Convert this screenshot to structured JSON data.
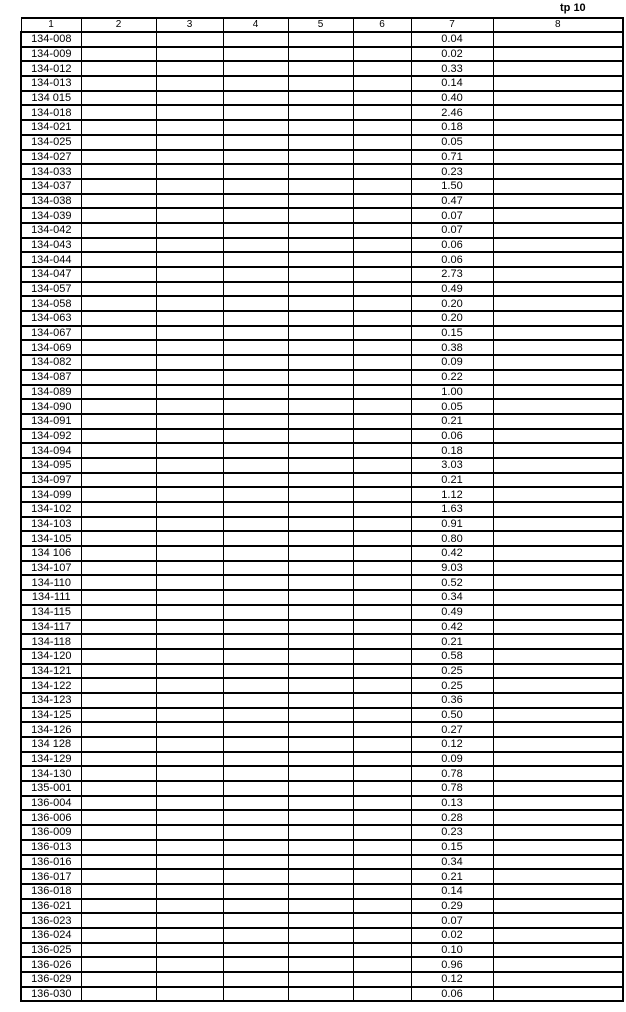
{
  "page_label": "tр 10",
  "columns": [
    "1",
    "2",
    "3",
    "4",
    "5",
    "6",
    "7",
    "8"
  ],
  "rows": [
    [
      "134-008",
      "0.04"
    ],
    [
      "134-009",
      "0.02"
    ],
    [
      "134-012",
      "0.33"
    ],
    [
      "134-013",
      "0.14"
    ],
    [
      "134 015",
      "0.40"
    ],
    [
      "134-018",
      "2.46"
    ],
    [
      "134-021",
      "0.18"
    ],
    [
      "134-025",
      "0.05"
    ],
    [
      "134-027",
      "0.71"
    ],
    [
      "134-033",
      "0.23"
    ],
    [
      "134-037",
      "1.50"
    ],
    [
      "134-038",
      "0.47"
    ],
    [
      "134-039",
      "0.07"
    ],
    [
      "134-042",
      "0.07"
    ],
    [
      "134-043",
      "0.06"
    ],
    [
      "134-044",
      "0.06"
    ],
    [
      "134-047",
      "2.73"
    ],
    [
      "134-057",
      "0.49"
    ],
    [
      "134-058",
      "0.20"
    ],
    [
      "134-063",
      "0.20"
    ],
    [
      "134-067",
      "0.15"
    ],
    [
      "134-069",
      "0.38"
    ],
    [
      "134-082",
      "0.09"
    ],
    [
      "134-087",
      "0.22"
    ],
    [
      "134-089",
      "1.00"
    ],
    [
      "134-090",
      "0.05"
    ],
    [
      "134-091",
      "0.21"
    ],
    [
      "134-092",
      "0.06"
    ],
    [
      "134-094",
      "0.18"
    ],
    [
      "134-095",
      "3.03"
    ],
    [
      "134-097",
      "0.21"
    ],
    [
      "134-099",
      "1.12"
    ],
    [
      "134-102",
      "1.63"
    ],
    [
      "134-103",
      "0.91"
    ],
    [
      "134-105",
      "0.80"
    ],
    [
      "134 106",
      "0.42"
    ],
    [
      "134-107",
      "9.03"
    ],
    [
      "134-110",
      "0.52"
    ],
    [
      "134-111",
      "0.34"
    ],
    [
      "134-115",
      "0.49"
    ],
    [
      "134-117",
      "0.42"
    ],
    [
      "134-118",
      "0.21"
    ],
    [
      "134-120",
      "0.58"
    ],
    [
      "134-121",
      "0.25"
    ],
    [
      "134-122",
      "0.25"
    ],
    [
      "134-123",
      "0.36"
    ],
    [
      "134-125",
      "0.50"
    ],
    [
      "134-126",
      "0.27"
    ],
    [
      "134 128",
      "0.12"
    ],
    [
      "134-129",
      "0.09"
    ],
    [
      "134-130",
      "0.78"
    ],
    [
      "135-001",
      "0.78"
    ],
    [
      "136-004",
      "0.13"
    ],
    [
      "136-006",
      "0.28"
    ],
    [
      "136-009",
      "0.23"
    ],
    [
      "136-013",
      "0.15"
    ],
    [
      "136-016",
      "0.34"
    ],
    [
      "136-017",
      "0.21"
    ],
    [
      "136-018",
      "0.14"
    ],
    [
      "136-021",
      "0.29"
    ],
    [
      "136-023",
      "0.07"
    ],
    [
      "136-024",
      "0.02"
    ],
    [
      "136-025",
      "0.10"
    ],
    [
      "136-026",
      "0.96"
    ],
    [
      "136-029",
      "0.12"
    ],
    [
      "136-030",
      "0.06"
    ]
  ]
}
